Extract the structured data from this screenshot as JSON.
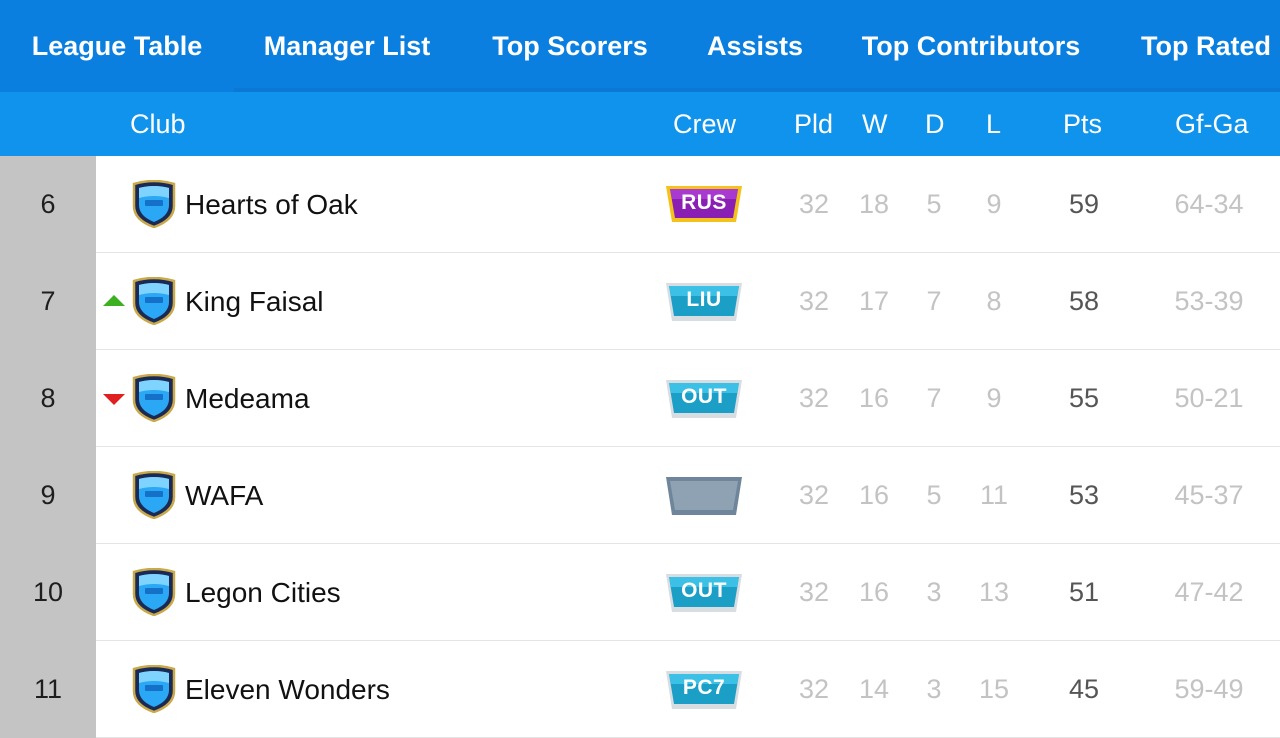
{
  "tabs": [
    {
      "label": "League Table",
      "active": true
    },
    {
      "label": "Manager List",
      "active": false
    },
    {
      "label": "Top Scorers",
      "active": false
    },
    {
      "label": "Assists",
      "active": false
    },
    {
      "label": "Top Contributors",
      "active": false
    },
    {
      "label": "Top Rated",
      "active": false
    }
  ],
  "columns": {
    "club": "Club",
    "crew": "Crew",
    "pld": "Pld",
    "w": "W",
    "d": "D",
    "l": "L",
    "pts": "Pts",
    "gfga": "Gf-Ga"
  },
  "colors": {
    "tabbar": "#0a7fe0",
    "header": "#0f93ec",
    "rank_bg": "#c4c4c4",
    "move_up": "#3cb021",
    "move_down": "#e02020",
    "crew_purple": "#8a1fb3",
    "crew_teal": "#1b9fc7",
    "crew_empty": "#7e93a5"
  },
  "rows": [
    {
      "rank": "6",
      "movement": "none",
      "club": "Hearts of Oak",
      "crew": "RUS",
      "crew_style": "purple-gold",
      "pld": "32",
      "w": "18",
      "d": "5",
      "l": "9",
      "pts": "59",
      "gfga": "64-34"
    },
    {
      "rank": "7",
      "movement": "up",
      "club": "King Faisal",
      "crew": "LIU",
      "crew_style": "teal",
      "pld": "32",
      "w": "17",
      "d": "7",
      "l": "8",
      "pts": "58",
      "gfga": "53-39"
    },
    {
      "rank": "8",
      "movement": "down",
      "club": "Medeama",
      "crew": "OUT",
      "crew_style": "teal",
      "pld": "32",
      "w": "16",
      "d": "7",
      "l": "9",
      "pts": "55",
      "gfga": "50-21"
    },
    {
      "rank": "9",
      "movement": "none",
      "club": "WAFA",
      "crew": "",
      "crew_style": "empty",
      "pld": "32",
      "w": "16",
      "d": "5",
      "l": "11",
      "pts": "53",
      "gfga": "45-37"
    },
    {
      "rank": "10",
      "movement": "none",
      "club": "Legon Cities",
      "crew": "OUT",
      "crew_style": "teal",
      "pld": "32",
      "w": "16",
      "d": "3",
      "l": "13",
      "pts": "51",
      "gfga": "47-42"
    },
    {
      "rank": "11",
      "movement": "none",
      "club": "Eleven Wonders",
      "crew": "PC7",
      "crew_style": "teal",
      "pld": "32",
      "w": "14",
      "d": "3",
      "l": "15",
      "pts": "45",
      "gfga": "59-49"
    }
  ]
}
